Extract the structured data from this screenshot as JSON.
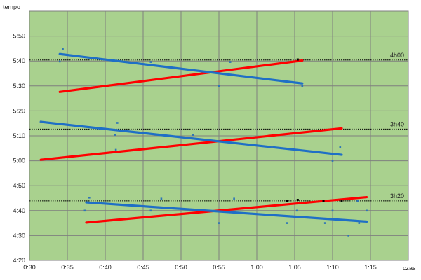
{
  "chart_data": {
    "type": "scatter",
    "title": "",
    "xlabel": "czas",
    "ylabel": "tempo",
    "x_unit": "minutes",
    "y_unit": "seconds per km",
    "xlim": [
      30,
      80
    ],
    "ylim": [
      260,
      360
    ],
    "x_ticks": [
      {
        "value": 30,
        "label": "0:30"
      },
      {
        "value": 35,
        "label": "0:35"
      },
      {
        "value": 40,
        "label": "0:40"
      },
      {
        "value": 45,
        "label": "0:45"
      },
      {
        "value": 50,
        "label": "0:50"
      },
      {
        "value": 55,
        "label": "0:55"
      },
      {
        "value": 60,
        "label": "1:00"
      },
      {
        "value": 65,
        "label": "1:05"
      },
      {
        "value": 70,
        "label": "1:10"
      },
      {
        "value": 75,
        "label": "1:15"
      },
      {
        "value": 80,
        "label": "czas"
      }
    ],
    "y_ticks": [
      {
        "value": 260,
        "label": "4:20"
      },
      {
        "value": 270,
        "label": "4:30"
      },
      {
        "value": 280,
        "label": "4:40"
      },
      {
        "value": 290,
        "label": "4:50"
      },
      {
        "value": 300,
        "label": "5:00"
      },
      {
        "value": 310,
        "label": "5:10"
      },
      {
        "value": 320,
        "label": "5:20"
      },
      {
        "value": 330,
        "label": "5:30"
      },
      {
        "value": 340,
        "label": "5:40"
      },
      {
        "value": 350,
        "label": "5:50"
      },
      {
        "value": 360,
        "label": "tempo"
      }
    ],
    "grid": true,
    "background": "#a9d18e",
    "grid_color": "#7f7f7f",
    "reference_lines": [
      {
        "label": "4h00",
        "y": 340.4
      },
      {
        "label": "3h40",
        "y": 312.7
      },
      {
        "label": "3h20",
        "y": 283.9
      }
    ],
    "point_color": "#2e75b6",
    "marker_color": "#000000",
    "points": [
      [
        34.0,
        339.8
      ],
      [
        34.4,
        344.8
      ],
      [
        46.0,
        339.6
      ],
      [
        56.5,
        339.6
      ],
      [
        55.0,
        330.0
      ],
      [
        66.0,
        330.0
      ],
      [
        31.5,
        315.7
      ],
      [
        41.6,
        315.2
      ],
      [
        41.3,
        310.4
      ],
      [
        51.6,
        310.4
      ],
      [
        41.4,
        304.4
      ],
      [
        62.0,
        305.4
      ],
      [
        70.0,
        300.0
      ],
      [
        71.0,
        305.4
      ],
      [
        37.3,
        280.0
      ],
      [
        37.9,
        285.2
      ],
      [
        47.4,
        284.8
      ],
      [
        57.0,
        284.8
      ],
      [
        46.0,
        280.0
      ],
      [
        55.0,
        275.0
      ],
      [
        64.0,
        275.0
      ],
      [
        65.3,
        280.0
      ],
      [
        69.0,
        275.0
      ],
      [
        70.0,
        280.0
      ],
      [
        72.1,
        270.0
      ],
      [
        73.5,
        275.0
      ],
      [
        74.5,
        280.0
      ],
      [
        73.3,
        283.9
      ]
    ],
    "markers": [
      [
        65.4,
        340.6
      ],
      [
        65.4,
        284.3
      ],
      [
        64.0,
        284.0
      ],
      [
        68.8,
        284.0
      ],
      [
        71.2,
        284.0
      ]
    ],
    "trend_lines": [
      {
        "color": "#ff0000",
        "x": [
          34.0,
          66.0
        ],
        "y": [
          327.6,
          340.2
        ]
      },
      {
        "color": "#1f6fc6",
        "x": [
          34.0,
          66.0
        ],
        "y": [
          342.8,
          331.0
        ]
      },
      {
        "color": "#ff0000",
        "x": [
          31.5,
          71.2
        ],
        "y": [
          300.4,
          313.0
        ]
      },
      {
        "color": "#1f6fc6",
        "x": [
          31.5,
          71.2
        ],
        "y": [
          315.6,
          302.4
        ]
      },
      {
        "color": "#ff0000",
        "x": [
          37.5,
          74.5
        ],
        "y": [
          275.2,
          285.4
        ]
      },
      {
        "color": "#1f6fc6",
        "x": [
          37.5,
          74.5
        ],
        "y": [
          283.3,
          275.6
        ]
      }
    ]
  }
}
